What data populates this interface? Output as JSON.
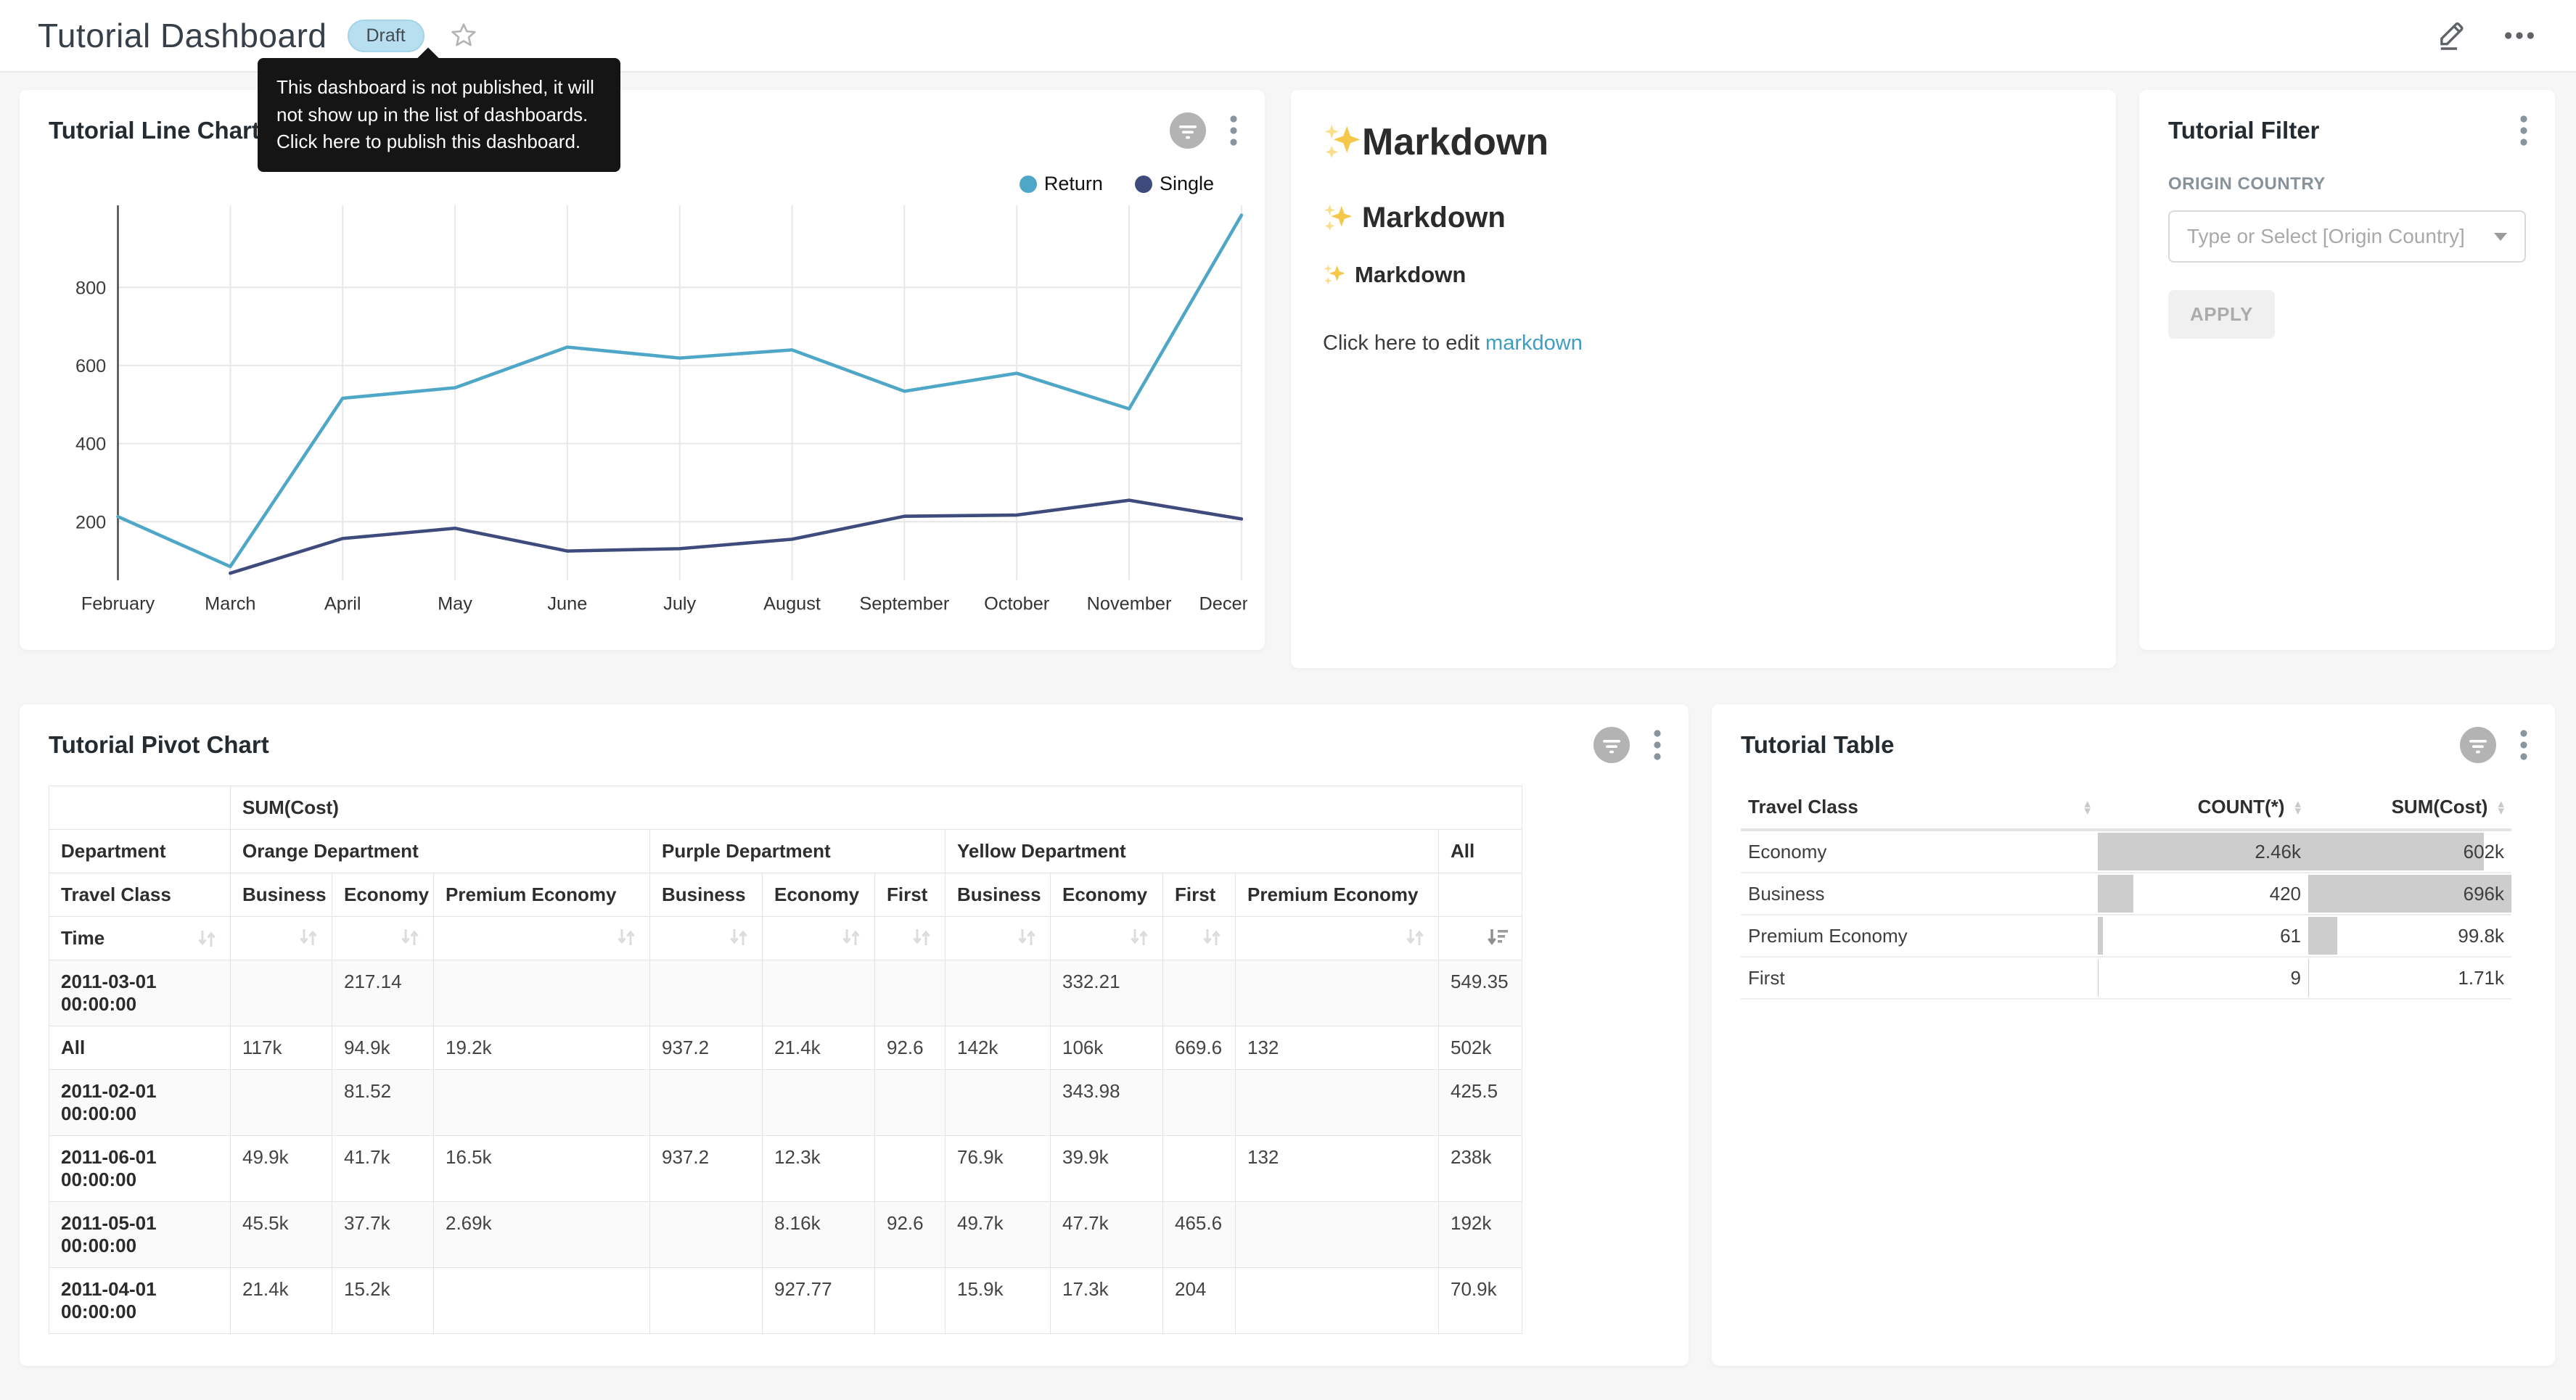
{
  "colors": {
    "accent_blue": "#4FA7C7",
    "navy": "#3E4B7C",
    "link": "#3E9EC1",
    "badge_bg": "#B7DFF0",
    "badge_text": "#434B52",
    "tooltip_bg": "#151515",
    "bar_gray": "#CDCDCD"
  },
  "header": {
    "title": "Tutorial Dashboard",
    "status_badge": "Draft",
    "tooltip": "This dashboard is not published, it will not show up in the list of dashboards. Click here to publish this dashboard."
  },
  "chart_data": {
    "type": "line",
    "title": "Tutorial Line Chart",
    "categories": [
      "February",
      "March",
      "April",
      "May",
      "June",
      "July",
      "August",
      "September",
      "October",
      "November",
      "December"
    ],
    "series": [
      {
        "name": "Return",
        "color": "#4FA7C7",
        "values": [
          213,
          85,
          516,
          543,
          647,
          619,
          640,
          534,
          580,
          489,
          985
        ]
      },
      {
        "name": "Single",
        "color": "#3E4B7C",
        "values": [
          null,
          68,
          157,
          183,
          125,
          131,
          155,
          214,
          217,
          255,
          207
        ]
      }
    ],
    "ylim": [
      50,
      1010
    ],
    "yticks": [
      200,
      400,
      600,
      800
    ],
    "grid": true,
    "legend_position": "top-right"
  },
  "panels": {
    "line_chart": {
      "title": "Tutorial Line Chart"
    },
    "markdown": {
      "h1": "Markdown",
      "h2": "Markdown",
      "h3": "Markdown",
      "paragraph_prefix": "Click here to edit ",
      "link_text": "markdown"
    },
    "filter": {
      "title": "Tutorial Filter",
      "field_label": "ORIGIN COUNTRY",
      "select_placeholder": "Type or Select [Origin Country]",
      "apply_label": "APPLY"
    },
    "pivot": {
      "title": "Tutorial Pivot Chart",
      "metric_label": "SUM(Cost)",
      "dept_row_label": "Department",
      "class_row_label": "Travel Class",
      "time_row_label": "Time",
      "column_groups": [
        {
          "label": "Orange Department",
          "classes": [
            "Business",
            "Economy",
            "Premium Economy"
          ]
        },
        {
          "label": "Purple Department",
          "classes": [
            "Business",
            "Economy",
            "First"
          ]
        },
        {
          "label": "Yellow Department",
          "classes": [
            "Business",
            "Economy",
            "First",
            "Premium Economy"
          ]
        },
        {
          "label": "All",
          "classes": [
            ""
          ]
        }
      ],
      "sorted_column": "All",
      "sort_direction": "descending",
      "rows": [
        {
          "label": "2011-03-01 00:00:00",
          "values": [
            "",
            "217.14",
            "",
            "",
            "",
            "",
            "",
            "332.21",
            "",
            "",
            "549.35"
          ]
        },
        {
          "label": "All",
          "values": [
            "117k",
            "94.9k",
            "19.2k",
            "937.2",
            "21.4k",
            "92.6",
            "142k",
            "106k",
            "669.6",
            "132",
            "502k"
          ]
        },
        {
          "label": "2011-02-01 00:00:00",
          "values": [
            "",
            "81.52",
            "",
            "",
            "",
            "",
            "",
            "343.98",
            "",
            "",
            "425.5"
          ]
        },
        {
          "label": "2011-06-01 00:00:00",
          "values": [
            "49.9k",
            "41.7k",
            "16.5k",
            "937.2",
            "12.3k",
            "",
            "76.9k",
            "39.9k",
            "",
            "132",
            "238k"
          ]
        },
        {
          "label": "2011-05-01 00:00:00",
          "values": [
            "45.5k",
            "37.7k",
            "2.69k",
            "",
            "8.16k",
            "92.6",
            "49.7k",
            "47.7k",
            "465.6",
            "",
            "192k"
          ]
        },
        {
          "label": "2011-04-01 00:00:00",
          "values": [
            "21.4k",
            "15.2k",
            "",
            "",
            "927.77",
            "",
            "15.9k",
            "17.3k",
            "204",
            "",
            "70.9k"
          ]
        }
      ]
    },
    "table": {
      "title": "Tutorial Table",
      "columns": [
        "Travel Class",
        "COUNT(*)",
        "SUM(Cost)"
      ],
      "rows": [
        {
          "label": "Economy",
          "count": "2.46k",
          "sum": "602k",
          "count_bar": 100,
          "sum_bar": 86.5
        },
        {
          "label": "Business",
          "count": "420",
          "sum": "696k",
          "count_bar": 17,
          "sum_bar": 100
        },
        {
          "label": "Premium Economy",
          "count": "61",
          "sum": "99.8k",
          "count_bar": 2.5,
          "sum_bar": 14.3
        },
        {
          "label": "First",
          "count": "9",
          "sum": "1.71k",
          "count_bar": 0.4,
          "sum_bar": 0.25
        }
      ]
    }
  }
}
